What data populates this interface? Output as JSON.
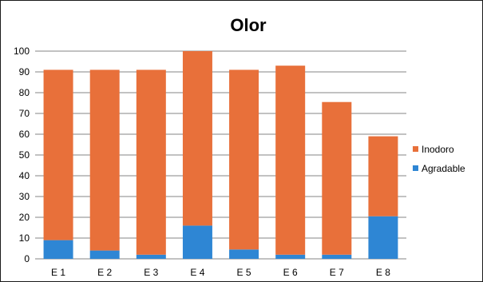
{
  "chart_data": {
    "type": "bar",
    "stacked": true,
    "title": "Olor",
    "xlabel": "",
    "ylabel": "",
    "ylim": [
      0,
      100
    ],
    "yticks": [
      0,
      10,
      20,
      30,
      40,
      50,
      60,
      70,
      80,
      90,
      100
    ],
    "grid": true,
    "legend_position": "right",
    "categories": [
      "E 1",
      "E 2",
      "E 3",
      "E 4",
      "E 5",
      "E 6",
      "E 7",
      "E 8"
    ],
    "series": [
      {
        "name": "Agradable",
        "color": "#2e86d4",
        "values": [
          9,
          4,
          2,
          16,
          4.5,
          2,
          2,
          20.5
        ]
      },
      {
        "name": "Inodoro",
        "color": "#e8703a",
        "values": [
          82,
          87,
          89,
          84,
          86.5,
          91,
          73.5,
          38.5
        ]
      }
    ],
    "legend": [
      "Inodoro",
      "Agradable"
    ]
  }
}
